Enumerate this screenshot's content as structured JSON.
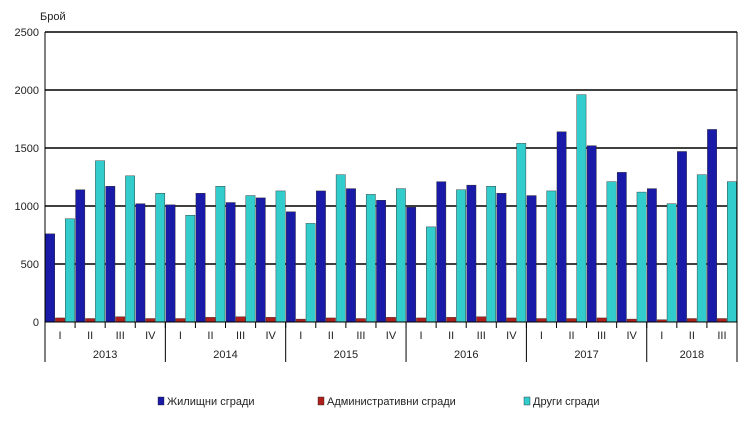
{
  "chart_data": {
    "type": "bar",
    "ylabel": "Брой",
    "ylim": [
      0,
      2500
    ],
    "yticks": [
      0,
      500,
      1000,
      1500,
      2000,
      2500
    ],
    "grid": true,
    "legend_position": "bottom",
    "categories": [
      "I",
      "II",
      "III",
      "IV",
      "I",
      "II",
      "III",
      "IV",
      "I",
      "II",
      "III",
      "IV",
      "I",
      "II",
      "III",
      "IV",
      "I",
      "II",
      "III",
      "IV",
      "I",
      "II",
      "III"
    ],
    "years": [
      {
        "label": "2013",
        "start": 0,
        "count": 4
      },
      {
        "label": "2014",
        "start": 4,
        "count": 4
      },
      {
        "label": "2015",
        "start": 8,
        "count": 4
      },
      {
        "label": "2016",
        "start": 12,
        "count": 4
      },
      {
        "label": "2017",
        "start": 16,
        "count": 4
      },
      {
        "label": "2018",
        "start": 20,
        "count": 3
      }
    ],
    "series": [
      {
        "name": "Жилищни сгради",
        "color": "#1a1aa8",
        "values": [
          760,
          1140,
          1170,
          1020,
          1010,
          1110,
          1030,
          1070,
          950,
          1130,
          1150,
          1050,
          990,
          1210,
          1180,
          1110,
          1090,
          1640,
          1520,
          1290,
          1150,
          1470,
          1660
        ]
      },
      {
        "name": "Административни сгради",
        "color": "#b0201a",
        "values": [
          35,
          30,
          45,
          30,
          30,
          40,
          45,
          40,
          25,
          35,
          30,
          40,
          35,
          40,
          45,
          35,
          30,
          30,
          35,
          25,
          20,
          30,
          30
        ]
      },
      {
        "name": "Други сгради",
        "color": "#33cccc",
        "values": [
          890,
          1390,
          1260,
          1110,
          920,
          1170,
          1090,
          1130,
          850,
          1270,
          1100,
          1150,
          820,
          1140,
          1170,
          1540,
          1130,
          1960,
          1210,
          1120,
          1020,
          1270,
          1210
        ]
      }
    ]
  }
}
